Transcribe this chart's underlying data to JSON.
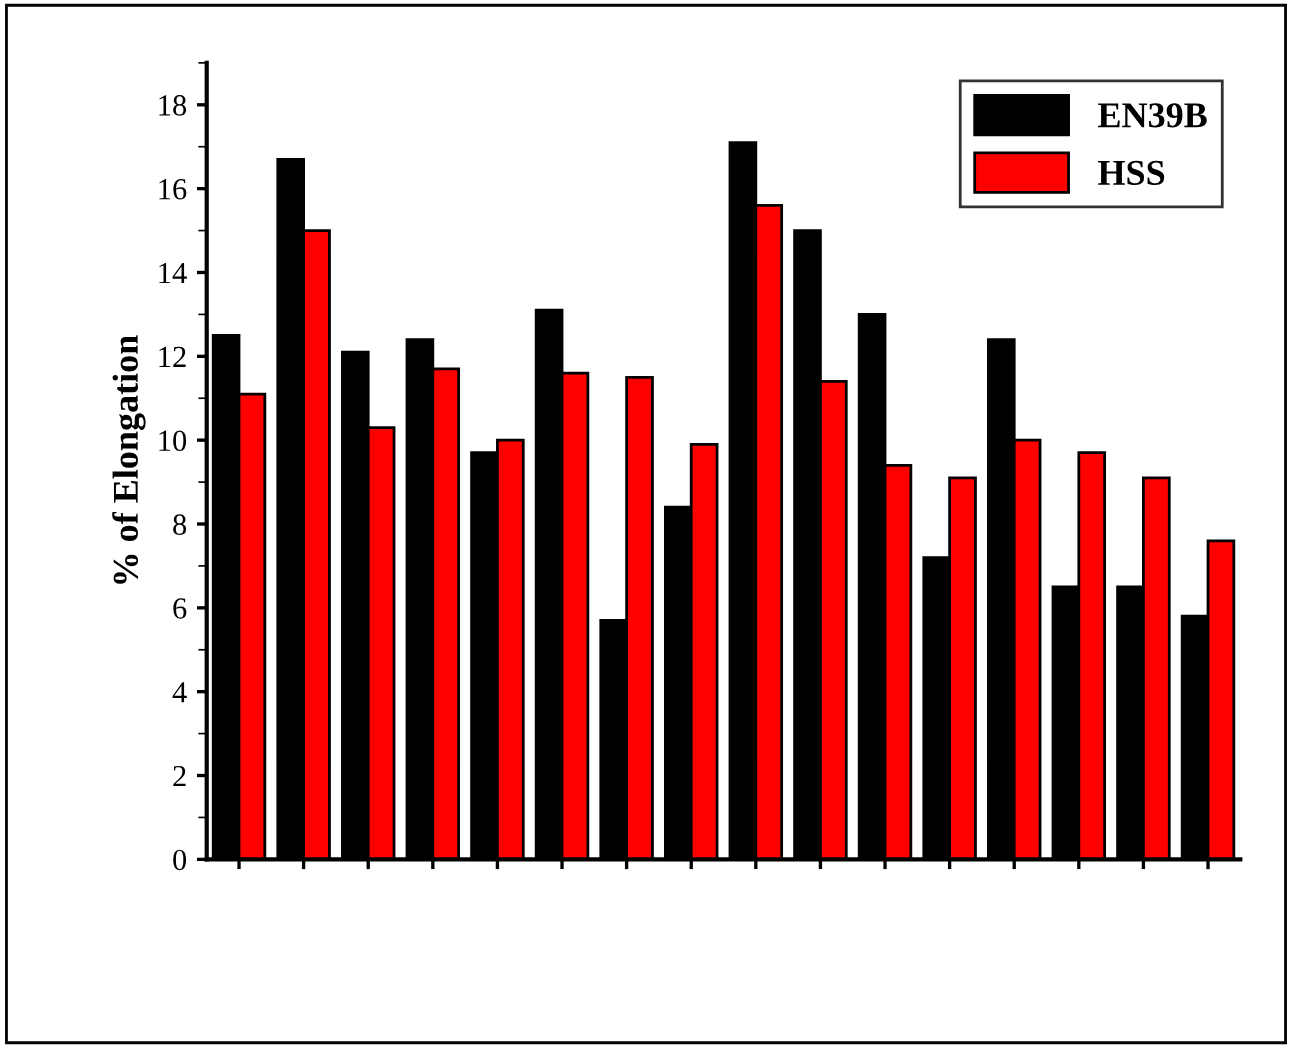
{
  "chart_data": {
    "type": "bar",
    "ylabel": "% of Elongation",
    "categories": [
      null,
      null,
      null,
      null,
      null,
      null,
      null,
      null,
      null,
      null,
      null,
      null,
      null,
      null,
      null,
      null
    ],
    "series": [
      {
        "name": "EN39B",
        "color": "#000000",
        "values": [
          12.5,
          16.7,
          12.1,
          12.4,
          9.7,
          13.1,
          5.7,
          8.4,
          17.1,
          15.0,
          13.0,
          7.2,
          12.4,
          6.5,
          6.5,
          5.8
        ]
      },
      {
        "name": "HSS",
        "color": "#ff0000",
        "values": [
          11.1,
          15.0,
          10.3,
          11.7,
          10.0,
          11.6,
          11.5,
          9.9,
          15.6,
          11.4,
          9.4,
          9.1,
          10.0,
          9.7,
          9.1,
          7.6
        ]
      }
    ],
    "ylim": [
      0,
      19
    ],
    "yticks": [
      0,
      2,
      4,
      6,
      8,
      10,
      12,
      14,
      16,
      18
    ],
    "grid": false,
    "legend": "top right"
  }
}
